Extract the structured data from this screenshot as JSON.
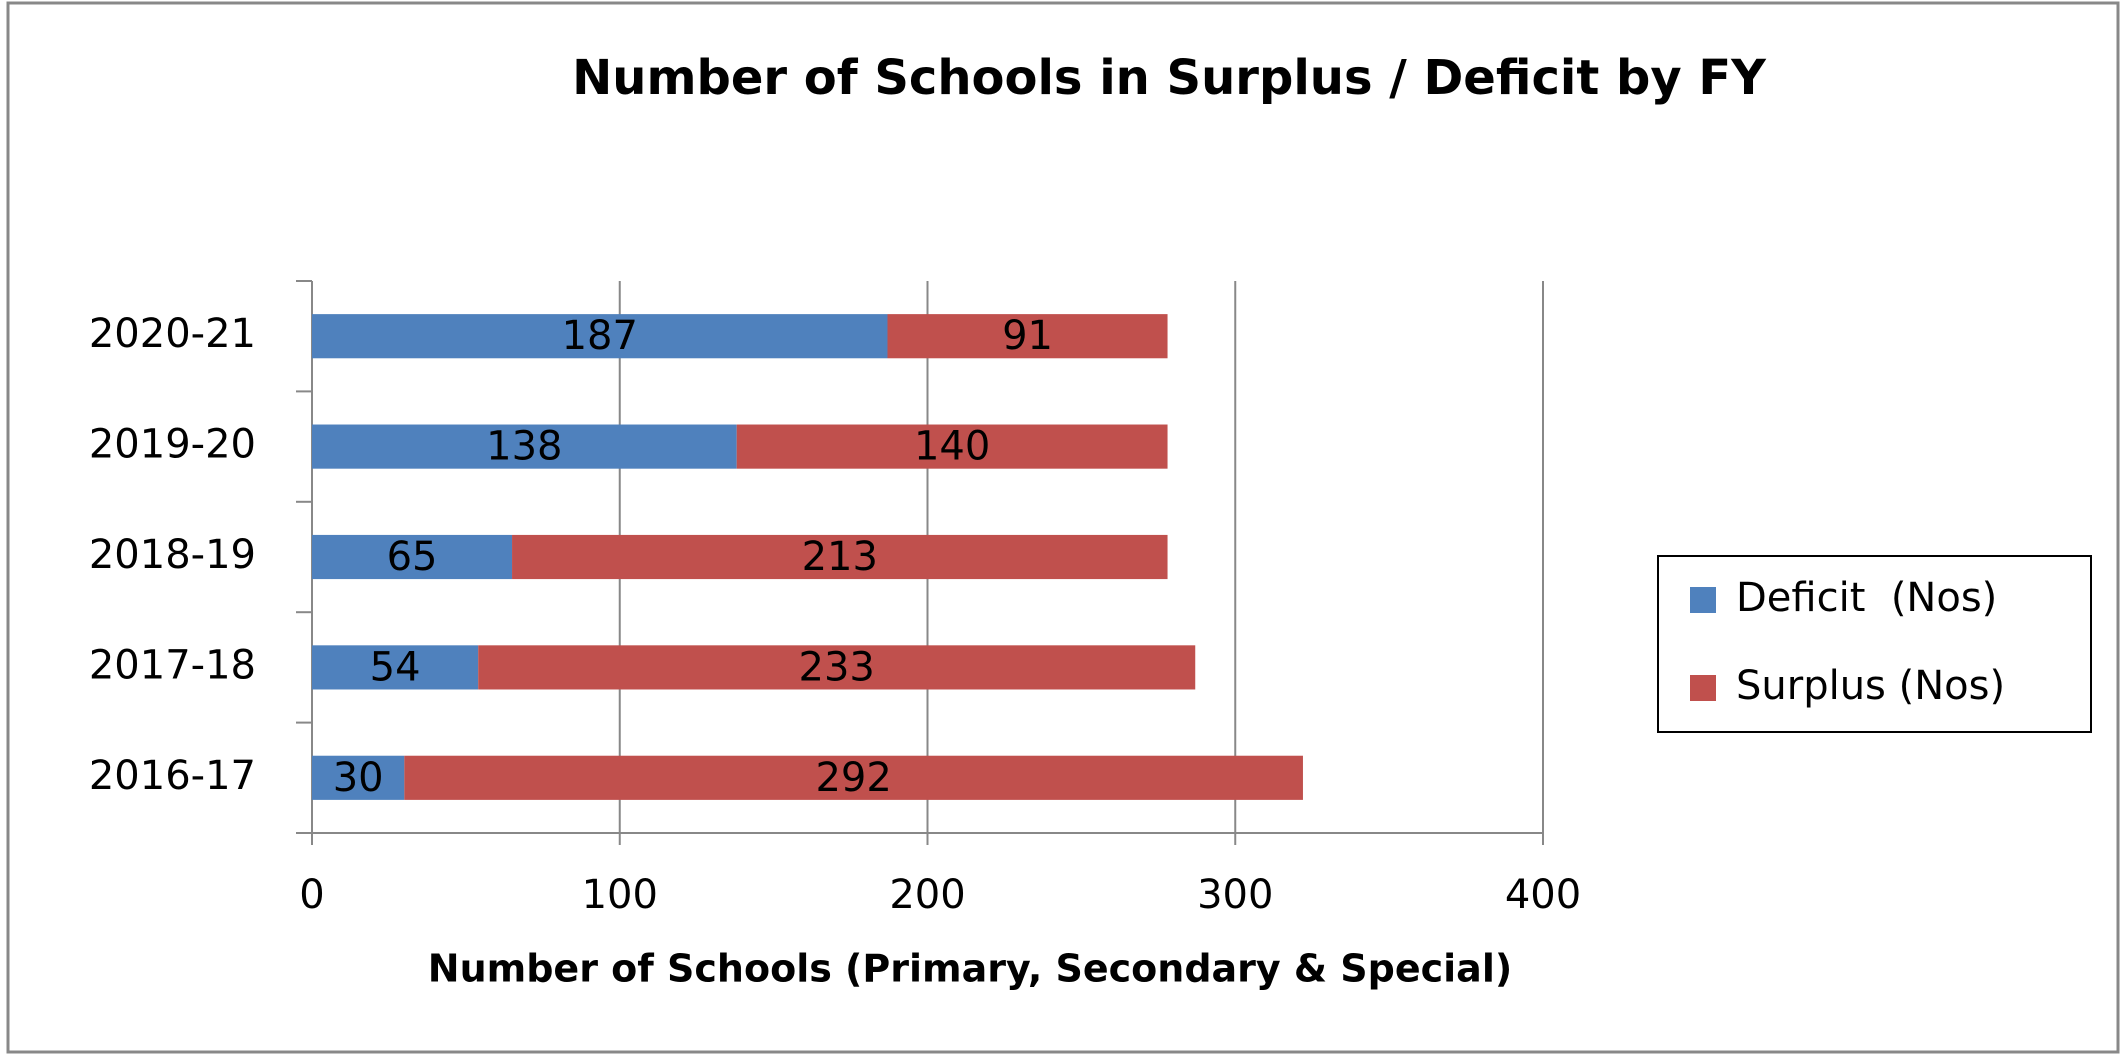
{
  "chart_data": {
    "type": "stacked_barh",
    "title": "Number of  Schools in Surplus / Deficit by FY",
    "xlabel": "Number of Schools (Primary, Secondary & Special)",
    "categories": [
      "2016-17",
      "2017-18",
      "2018-19",
      "2019-20",
      "2020-21"
    ],
    "series": [
      {
        "name": "Deficit  (Nos)",
        "color": "#4f81bd",
        "values": [
          30,
          54,
          65,
          138,
          187
        ]
      },
      {
        "name": "Surplus (Nos)",
        "color": "#c0504d",
        "values": [
          292,
          233,
          213,
          140,
          91
        ]
      }
    ],
    "xlim": [
      0,
      400
    ],
    "xticks": [
      0,
      100,
      200,
      300,
      400
    ],
    "grid": true,
    "legend": "right"
  }
}
